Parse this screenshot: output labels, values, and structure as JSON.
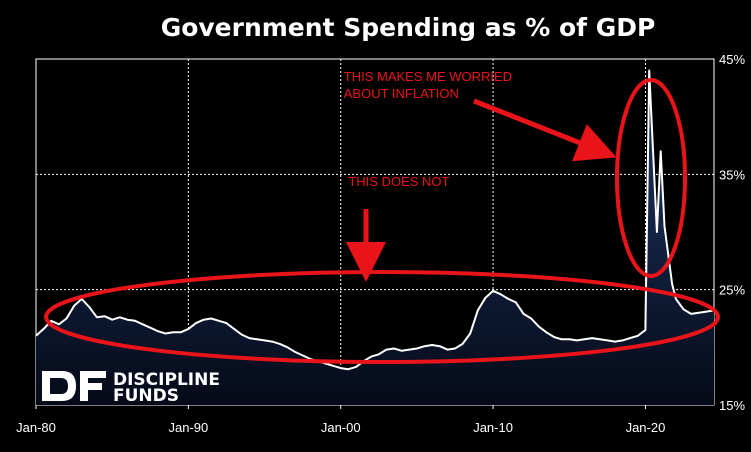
{
  "chart_data": {
    "type": "area",
    "title": "Government Spending as % of GDP",
    "x_tick_labels": [
      "Jan-80",
      "Jan-90",
      "Jan-00",
      "Jan-10",
      "Jan-20"
    ],
    "x_ticks": [
      1980,
      1990,
      2000,
      2010,
      2020
    ],
    "xlim": [
      1980,
      2024.5
    ],
    "y_tick_labels": [
      "15%",
      "25%",
      "35%",
      "45%"
    ],
    "y_ticks": [
      15,
      25,
      35,
      45
    ],
    "ylim": [
      15,
      45
    ],
    "grid": true,
    "colors": {
      "line": "#ffffff",
      "fill_top": "#1f3a6a",
      "fill_bottom": "#050a18",
      "annotation": "#e8141a"
    },
    "series": [
      {
        "values": [
          [
            1980.0,
            21.0
          ],
          [
            1980.5,
            21.6
          ],
          [
            1981.0,
            22.3
          ],
          [
            1981.5,
            22.0
          ],
          [
            1982.0,
            22.5
          ],
          [
            1982.5,
            23.6
          ],
          [
            1983.0,
            24.2
          ],
          [
            1983.5,
            23.5
          ],
          [
            1984.0,
            22.6
          ],
          [
            1984.5,
            22.7
          ],
          [
            1985.0,
            22.4
          ],
          [
            1985.5,
            22.6
          ],
          [
            1986.0,
            22.4
          ],
          [
            1986.5,
            22.3
          ],
          [
            1987.0,
            22.0
          ],
          [
            1987.5,
            21.7
          ],
          [
            1988.0,
            21.4
          ],
          [
            1988.5,
            21.2
          ],
          [
            1989.0,
            21.3
          ],
          [
            1989.5,
            21.3
          ],
          [
            1990.0,
            21.6
          ],
          [
            1990.5,
            22.1
          ],
          [
            1991.0,
            22.4
          ],
          [
            1991.5,
            22.5
          ],
          [
            1992.0,
            22.3
          ],
          [
            1992.5,
            22.1
          ],
          [
            1993.0,
            21.6
          ],
          [
            1993.5,
            21.1
          ],
          [
            1994.0,
            20.8
          ],
          [
            1994.5,
            20.7
          ],
          [
            1995.0,
            20.6
          ],
          [
            1995.5,
            20.5
          ],
          [
            1996.0,
            20.3
          ],
          [
            1996.5,
            20.0
          ],
          [
            1997.0,
            19.6
          ],
          [
            1997.5,
            19.3
          ],
          [
            1998.0,
            19.0
          ],
          [
            1998.5,
            18.8
          ],
          [
            1999.0,
            18.6
          ],
          [
            1999.5,
            18.4
          ],
          [
            2000.0,
            18.2
          ],
          [
            2000.5,
            18.1
          ],
          [
            2001.0,
            18.3
          ],
          [
            2001.5,
            18.8
          ],
          [
            2002.0,
            19.2
          ],
          [
            2002.5,
            19.4
          ],
          [
            2003.0,
            19.8
          ],
          [
            2003.5,
            19.9
          ],
          [
            2004.0,
            19.7
          ],
          [
            2004.5,
            19.8
          ],
          [
            2005.0,
            19.9
          ],
          [
            2005.5,
            20.1
          ],
          [
            2006.0,
            20.2
          ],
          [
            2006.5,
            20.1
          ],
          [
            2007.0,
            19.8
          ],
          [
            2007.5,
            19.9
          ],
          [
            2008.0,
            20.3
          ],
          [
            2008.5,
            21.2
          ],
          [
            2009.0,
            23.2
          ],
          [
            2009.5,
            24.3
          ],
          [
            2010.0,
            24.9
          ],
          [
            2010.5,
            24.6
          ],
          [
            2011.0,
            24.2
          ],
          [
            2011.5,
            23.9
          ],
          [
            2012.0,
            22.9
          ],
          [
            2012.5,
            22.5
          ],
          [
            2013.0,
            21.8
          ],
          [
            2013.5,
            21.3
          ],
          [
            2014.0,
            20.9
          ],
          [
            2014.5,
            20.7
          ],
          [
            2015.0,
            20.7
          ],
          [
            2015.5,
            20.6
          ],
          [
            2016.0,
            20.7
          ],
          [
            2016.5,
            20.8
          ],
          [
            2017.0,
            20.7
          ],
          [
            2017.5,
            20.6
          ],
          [
            2018.0,
            20.5
          ],
          [
            2018.5,
            20.6
          ],
          [
            2019.0,
            20.8
          ],
          [
            2019.5,
            21.0
          ],
          [
            2020.0,
            21.5
          ],
          [
            2020.25,
            44.0
          ],
          [
            2020.75,
            30.0
          ],
          [
            2021.0,
            37.0
          ],
          [
            2021.25,
            30.5
          ],
          [
            2021.75,
            25.5
          ],
          [
            2022.0,
            24.2
          ],
          [
            2022.5,
            23.3
          ],
          [
            2023.0,
            22.9
          ],
          [
            2023.5,
            23.0
          ],
          [
            2024.0,
            23.1
          ],
          [
            2024.5,
            23.2
          ]
        ]
      }
    ],
    "annotations": [
      {
        "text": "THIS MAKES ME WORRIED",
        "x": 2000.2,
        "y": 43.1
      },
      {
        "text": "ABOUT INFLATION",
        "x": 2000.2,
        "y": 41.6
      },
      {
        "text": "THIS DOES NOT",
        "x": 2000.5,
        "y": 34.0
      }
    ]
  },
  "logo": {
    "line1": "DISCIPLINE",
    "line2": "FUNDS"
  }
}
